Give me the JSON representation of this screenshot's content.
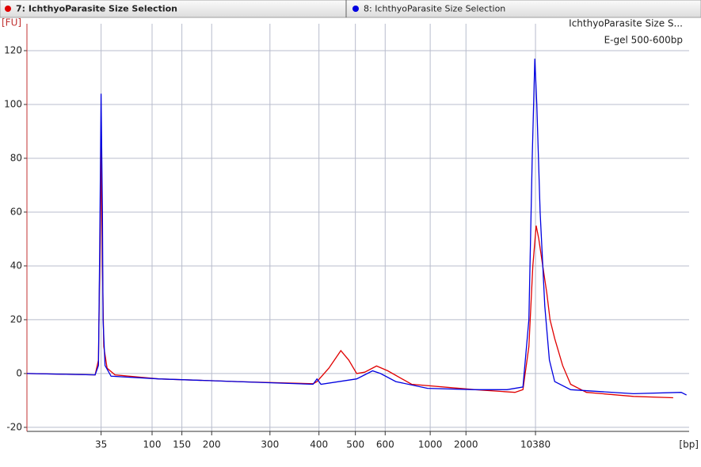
{
  "tabs": [
    {
      "label": "7: IchthyoParasite Size Selection",
      "color": "#e00000"
    },
    {
      "label": "8: IchthyoParasite Size Selection",
      "color": "#0000e0"
    }
  ],
  "chart_data": {
    "type": "line",
    "y_label": "[FU]",
    "x_label": "[bp]",
    "annotations": [
      "IchthyoParasite Size S...",
      "E-gel 500-600bp"
    ],
    "xlim": [
      20,
      120
    ],
    "ylim": [
      -21.5,
      130
    ],
    "xticks": [
      {
        "value": 31.2,
        "label": "35"
      },
      {
        "value": 38.9,
        "label": "100"
      },
      {
        "value": 43.4,
        "label": "150"
      },
      {
        "value": 47.9,
        "label": "200"
      },
      {
        "value": 56.7,
        "label": "300"
      },
      {
        "value": 64.1,
        "label": "400"
      },
      {
        "value": 69.6,
        "label": "500"
      },
      {
        "value": 74.1,
        "label": "600"
      },
      {
        "value": 80.9,
        "label": "1000"
      },
      {
        "value": 86.3,
        "label": "2000"
      },
      {
        "value": 96.8,
        "label": "10380"
      }
    ],
    "yticks": [
      -20,
      0,
      20,
      40,
      60,
      80,
      100,
      120
    ],
    "grid": true,
    "series": [
      {
        "name": "7: IchthyoParasite Size Selection",
        "color": "#e00000",
        "x": [
          20.0,
          30.3,
          30.8,
          31.1,
          31.2,
          31.4,
          31.6,
          32.1,
          33.3,
          39.9,
          51.8,
          63.2,
          63.8,
          65.6,
          67.4,
          68.6,
          69.8,
          71.0,
          72.8,
          74.5,
          78.1,
          87.7,
          93.7,
          94.9,
          95.8,
          96.4,
          96.9,
          97.3,
          97.9,
          98.5,
          99.0,
          99.7,
          100.3,
          100.9,
          102.1,
          104.5,
          111.6,
          117.6
        ],
        "values": [
          0,
          -0.5,
          5,
          60,
          85,
          40,
          10,
          2,
          -0.5,
          -2,
          -3,
          -3.8,
          -3,
          2,
          8.5,
          5,
          0,
          0.5,
          2.8,
          1,
          -4,
          -6,
          -7,
          -6,
          10,
          40,
          55,
          50,
          40,
          30,
          20,
          13,
          8,
          3,
          -4,
          -7,
          -8.5,
          -9
        ]
      },
      {
        "name": "8: IchthyoParasite Size Selection",
        "color": "#0000e0",
        "x": [
          20.0,
          30.3,
          30.8,
          31.0,
          31.2,
          31.4,
          31.5,
          31.8,
          32.7,
          39.9,
          51.8,
          63.2,
          63.8,
          64.4,
          69.8,
          72.2,
          73.4,
          75.7,
          80.5,
          87.7,
          92.5,
          94.9,
          95.8,
          96.3,
          96.7,
          97.0,
          97.5,
          98.2,
          98.9,
          99.7,
          102.1,
          111.6,
          118.8,
          119.6
        ],
        "values": [
          0,
          -0.5,
          3,
          50,
          104,
          60,
          20,
          3,
          -1,
          -2,
          -3,
          -4,
          -2,
          -4,
          -2,
          1,
          0,
          -3,
          -5.5,
          -6,
          -6,
          -5,
          20,
          80,
          117,
          100,
          60,
          25,
          5,
          -3,
          -6,
          -7.5,
          -7,
          -8
        ]
      }
    ]
  }
}
